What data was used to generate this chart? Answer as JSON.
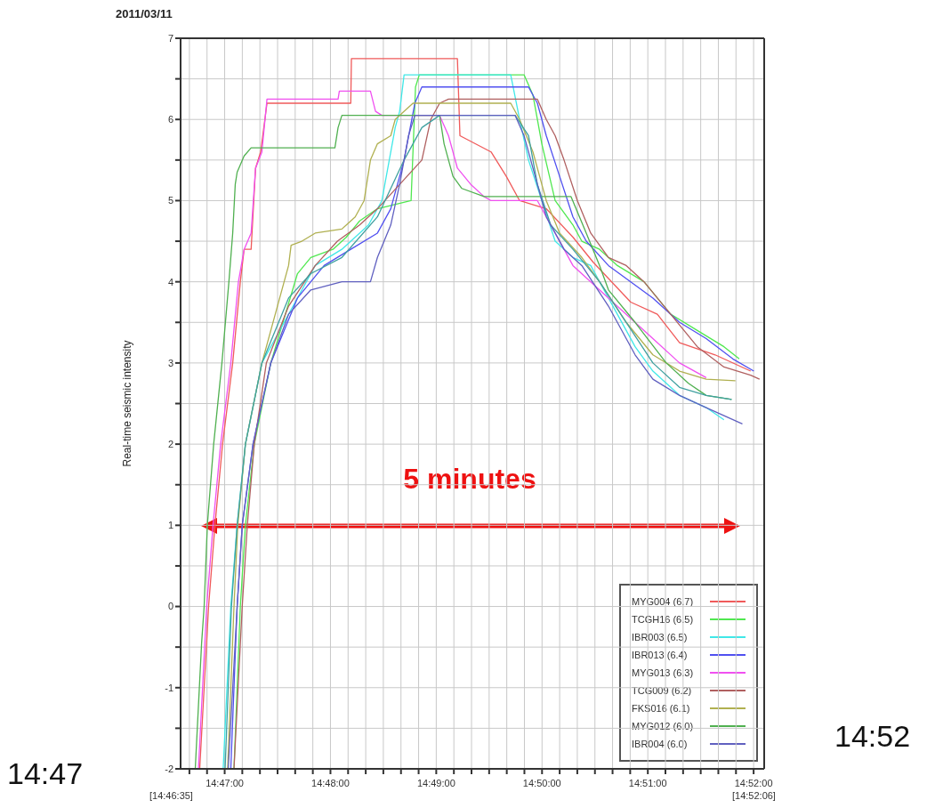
{
  "chart_data": {
    "type": "line",
    "title": "2011/03/11",
    "ylabel": "Real-time seismic intensity",
    "annotations": [
      "5 minutes",
      "14:47",
      "14:52",
      "[14:46:35]",
      "[14:52:06]"
    ],
    "xlim": [
      14.776389,
      14.868333
    ],
    "ylim": [
      -2,
      7
    ],
    "xticks": [
      {
        "value": 14.777778,
        "label": null
      },
      {
        "value": 14.780556,
        "label": null
      },
      {
        "value": 14.783333,
        "label": "14:47:00"
      },
      {
        "value": 14.786111,
        "label": null
      },
      {
        "value": 14.788889,
        "label": null
      },
      {
        "value": 14.791667,
        "label": null
      },
      {
        "value": 14.794444,
        "label": null
      },
      {
        "value": 14.797222,
        "label": null
      },
      {
        "value": 14.8,
        "label": "14:48:00"
      },
      {
        "value": 14.802778,
        "label": null
      },
      {
        "value": 14.805556,
        "label": null
      },
      {
        "value": 14.808333,
        "label": null
      },
      {
        "value": 14.811111,
        "label": null
      },
      {
        "value": 14.813889,
        "label": null
      },
      {
        "value": 14.816667,
        "label": "14:49:00"
      },
      {
        "value": 14.819444,
        "label": null
      },
      {
        "value": 14.822222,
        "label": null
      },
      {
        "value": 14.825,
        "label": null
      },
      {
        "value": 14.827778,
        "label": null
      },
      {
        "value": 14.830556,
        "label": null
      },
      {
        "value": 14.833333,
        "label": "14:50:00"
      },
      {
        "value": 14.836111,
        "label": null
      },
      {
        "value": 14.838889,
        "label": null
      },
      {
        "value": 14.841667,
        "label": null
      },
      {
        "value": 14.844444,
        "label": null
      },
      {
        "value": 14.847222,
        "label": null
      },
      {
        "value": 14.85,
        "label": "14:51:00"
      },
      {
        "value": 14.852778,
        "label": null
      },
      {
        "value": 14.855556,
        "label": null
      },
      {
        "value": 14.858333,
        "label": null
      },
      {
        "value": 14.861111,
        "label": null
      },
      {
        "value": 14.863889,
        "label": null
      },
      {
        "value": 14.866667,
        "label": "14:52:00"
      }
    ],
    "yticks": [
      -2,
      {
        "value": -1.5,
        "label": null
      },
      -1,
      {
        "value": -0.5,
        "label": null
      },
      0,
      {
        "value": 0.5,
        "label": null
      },
      1,
      {
        "value": 1.5,
        "label": null
      },
      2,
      {
        "value": 2.5,
        "label": null
      },
      3,
      {
        "value": 3.5,
        "label": null
      },
      4,
      {
        "value": 4.5,
        "label": null
      },
      5,
      {
        "value": 5.5,
        "label": null
      },
      6,
      {
        "value": 6.5,
        "label": null
      },
      7
    ],
    "grid": true,
    "legend": "bottom right",
    "series": [
      {
        "name": "MYG004 (6.7)",
        "color": "#f05a5a",
        "x": [
          14.7794,
          14.7808,
          14.7818,
          14.783,
          14.7846,
          14.7858,
          14.7864,
          14.7875,
          14.7882,
          14.789,
          14.79,
          14.8032,
          14.8033,
          14.82,
          14.8204,
          14.8253,
          14.8277,
          14.8298,
          14.834,
          14.8382,
          14.8414,
          14.8473,
          14.8515,
          14.855,
          14.8606,
          14.8662
        ],
        "values": [
          -2,
          0,
          1,
          2,
          3,
          4,
          4.4,
          4.4,
          5.4,
          5.6,
          6.2,
          6.2,
          6.75,
          6.75,
          5.8,
          5.6,
          5.3,
          5.0,
          4.9,
          4.55,
          4.24,
          3.75,
          3.6,
          3.25,
          3.1,
          2.9
        ]
      },
      {
        "name": "TCGH16 (6.5)",
        "color": "#50e850",
        "x": [
          14.7848,
          14.7858,
          14.7866,
          14.788,
          14.7906,
          14.7948,
          14.7969,
          14.8004,
          14.8025,
          14.8046,
          14.8074,
          14.8127,
          14.8134,
          14.814,
          14.8305,
          14.8319,
          14.8326,
          14.8333,
          14.8354,
          14.8382,
          14.8396,
          14.8424,
          14.8452,
          14.8494,
          14.8536,
          14.8578,
          14.862,
          14.8644
        ],
        "values": [
          -2,
          0,
          1,
          2,
          3,
          4.1,
          4.3,
          4.4,
          4.55,
          4.75,
          4.9,
          5.0,
          6.4,
          6.55,
          6.55,
          6.3,
          6.0,
          5.7,
          5.0,
          4.7,
          4.5,
          4.4,
          4.2,
          4.0,
          3.6,
          3.4,
          3.2,
          3.05
        ]
      },
      {
        "name": "IBR003 (6.5)",
        "color": "#40e8e8",
        "x": [
          14.7831,
          14.7843,
          14.7853,
          14.7866,
          14.7892,
          14.7941,
          14.7976,
          14.8018,
          14.806,
          14.8081,
          14.8102,
          14.8109,
          14.8116,
          14.8284,
          14.8298,
          14.8312,
          14.8333,
          14.8354,
          14.8382,
          14.841,
          14.8424,
          14.8452,
          14.848,
          14.8508,
          14.855,
          14.8592,
          14.862
        ],
        "values": [
          -2,
          0,
          1,
          2,
          3,
          3.7,
          4.2,
          4.4,
          4.7,
          5.0,
          5.9,
          6.1,
          6.55,
          6.55,
          6.0,
          5.5,
          5.0,
          4.5,
          4.3,
          4.2,
          4.0,
          3.6,
          3.2,
          2.9,
          2.6,
          2.45,
          2.3
        ]
      },
      {
        "name": "IBR013 (6.4)",
        "color": "#5050f0",
        "x": [
          14.7843,
          14.7853,
          14.7861,
          14.7878,
          14.7906,
          14.7948,
          14.799,
          14.8032,
          14.8074,
          14.8095,
          14.8116,
          14.8133,
          14.8144,
          14.8312,
          14.8326,
          14.834,
          14.8361,
          14.8382,
          14.8403,
          14.8438,
          14.8473,
          14.8508,
          14.855,
          14.8592,
          14.8634,
          14.8667
        ],
        "values": [
          -2,
          0,
          1,
          2,
          3,
          3.8,
          4.2,
          4.4,
          4.6,
          4.9,
          5.5,
          6.2,
          6.4,
          6.4,
          6.2,
          5.8,
          5.3,
          4.8,
          4.5,
          4.2,
          4.0,
          3.8,
          3.5,
          3.3,
          3.05,
          2.9
        ]
      },
      {
        "name": "MYG013 (6.3)",
        "color": "#f050f0",
        "x": [
          14.7792,
          14.7805,
          14.7815,
          14.7827,
          14.7843,
          14.7855,
          14.7864,
          14.7875,
          14.7882,
          14.7892,
          14.79,
          14.8012,
          14.8014,
          14.8063,
          14.8071,
          14.8081,
          14.8172,
          14.8186,
          14.82,
          14.8221,
          14.8242,
          14.8253,
          14.8326,
          14.8354,
          14.8382,
          14.8438,
          14.8466,
          14.8508,
          14.855,
          14.8592
        ],
        "values": [
          -2,
          0,
          1,
          2,
          3,
          4,
          4.4,
          4.6,
          5.4,
          5.6,
          6.25,
          6.25,
          6.35,
          6.35,
          6.1,
          6.05,
          6.05,
          5.8,
          5.4,
          5.2,
          5.05,
          5.0,
          5.0,
          4.6,
          4.2,
          3.8,
          3.6,
          3.3,
          3.0,
          2.82
        ]
      },
      {
        "name": "TCG009 (6.2)",
        "color": "#b06060",
        "x": [
          14.7848,
          14.7861,
          14.7869,
          14.788,
          14.7899,
          14.7934,
          14.7976,
          14.8011,
          14.8046,
          14.8074,
          14.8144,
          14.8158,
          14.8172,
          14.8186,
          14.8326,
          14.834,
          14.8354,
          14.8368,
          14.8389,
          14.841,
          14.8438,
          14.8466,
          14.8494,
          14.8536,
          14.8578,
          14.862,
          14.8662,
          14.8676
        ],
        "values": [
          -2,
          0,
          1,
          2,
          3,
          3.7,
          4.2,
          4.5,
          4.7,
          4.9,
          5.5,
          6.0,
          6.2,
          6.25,
          6.25,
          6.0,
          5.8,
          5.5,
          5.0,
          4.6,
          4.3,
          4.2,
          4.0,
          3.6,
          3.2,
          2.95,
          2.85,
          2.8
        ]
      },
      {
        "name": "FKS016 (6.1)",
        "color": "#b0b050",
        "x": [
          14.7838,
          14.7848,
          14.7854,
          14.7866,
          14.7892,
          14.7934,
          14.7938,
          14.7955,
          14.7976,
          14.8018,
          14.8039,
          14.8053,
          14.8063,
          14.8074,
          14.8095,
          14.8102,
          14.813,
          14.8284,
          14.8298,
          14.8319,
          14.834,
          14.8361,
          14.8396,
          14.8424,
          14.8466,
          14.8508,
          14.855,
          14.8592,
          14.8638
        ],
        "values": [
          -2,
          0,
          1,
          2,
          3,
          4.2,
          4.45,
          4.5,
          4.6,
          4.65,
          4.8,
          5.0,
          5.5,
          5.7,
          5.8,
          6.0,
          6.2,
          6.2,
          6.0,
          5.6,
          5.0,
          4.6,
          4.3,
          4.0,
          3.5,
          3.1,
          2.9,
          2.8,
          2.78
        ]
      },
      {
        "name": "MYG012 (6.0)",
        "color": "#50b050",
        "x": [
          14.7787,
          14.7797,
          14.7801,
          14.7806,
          14.7816,
          14.7829,
          14.784,
          14.7846,
          14.785,
          14.7853,
          14.7864,
          14.7875,
          14.8007,
          14.8012,
          14.8018,
          14.8172,
          14.8179,
          14.8193,
          14.8207,
          14.8242,
          14.8379,
          14.8403,
          14.8424,
          14.8438,
          14.848,
          14.8529,
          14.8564,
          14.8592,
          14.8632
        ],
        "values": [
          -2,
          -0.45,
          0,
          1,
          2,
          3,
          4,
          4.6,
          5.2,
          5.35,
          5.55,
          5.65,
          5.65,
          5.9,
          6.05,
          6.05,
          5.7,
          5.3,
          5.15,
          5.05,
          5.05,
          4.6,
          4.2,
          3.9,
          3.5,
          3.0,
          2.75,
          2.6,
          2.55
        ]
      },
      {
        "color": "#40a0a0",
        "x": [
          14.7834,
          14.7844,
          14.7853,
          14.7866,
          14.7892,
          14.7934,
          14.7969,
          14.8018,
          14.8074,
          14.8116,
          14.8144,
          14.8172,
          14.8291,
          14.8312,
          14.8326,
          14.8347,
          14.8382,
          14.8424,
          14.8466,
          14.8508,
          14.855,
          14.8592,
          14.8632
        ],
        "values": [
          -2,
          0,
          1,
          2,
          3,
          3.8,
          4.1,
          4.3,
          4.8,
          5.5,
          5.9,
          6.05,
          6.05,
          5.8,
          5.2,
          4.7,
          4.4,
          4.0,
          3.5,
          3.0,
          2.7,
          2.6,
          2.55
        ]
      },
      {
        "name": "IBR004 (6.0)",
        "color": "#6060c0",
        "x": [
          14.7839,
          14.7853,
          14.7861,
          14.7878,
          14.7906,
          14.7934,
          14.7969,
          14.8018,
          14.8063,
          14.8074,
          14.8095,
          14.8109,
          14.8123,
          14.8133,
          14.8291,
          14.8305,
          14.8326,
          14.834,
          14.8368,
          14.8396,
          14.8438,
          14.848,
          14.8508,
          14.855,
          14.8592,
          14.8649
        ],
        "values": [
          -2,
          0,
          1,
          2,
          3,
          3.6,
          3.9,
          4.0,
          4.0,
          4.3,
          4.7,
          5.2,
          5.8,
          6.05,
          6.05,
          5.8,
          5.2,
          4.8,
          4.4,
          4.2,
          3.7,
          3.1,
          2.8,
          2.6,
          2.45,
          2.25
        ]
      }
    ]
  }
}
